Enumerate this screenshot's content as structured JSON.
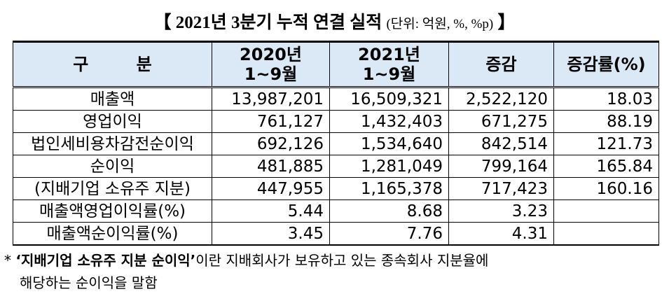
{
  "header": {
    "title": "【 2021년 3분기 누적 연결 실적",
    "unit": "(단위: 억원, %, %p)",
    "close": "】"
  },
  "table": {
    "columns": [
      [
        "구 분"
      ],
      [
        "2020년",
        "1~9월"
      ],
      [
        "2021년",
        "1~9월"
      ],
      [
        "증감"
      ],
      [
        "증감률(%)"
      ]
    ],
    "rows": [
      [
        "매출액",
        "13,987,201",
        "16,509,321",
        "2,522,120",
        "18.03"
      ],
      [
        "영업이익",
        "761,127",
        "1,432,403",
        "671,275",
        "88.19"
      ],
      [
        "법인세비용차감전순이익",
        "692,126",
        "1,534,640",
        "842,514",
        "121.73"
      ],
      [
        "순이익",
        "481,885",
        "1,281,049",
        "799,164",
        "165.84"
      ],
      [
        "(지배기업 소유주 지분)",
        "447,955",
        "1,165,378",
        "717,423",
        "160.16"
      ],
      [
        "매출액영업이익률(%)",
        "5.44",
        "8.68",
        "3.23"
      ],
      [
        "매출액순이익률(%)",
        "3.45",
        "7.76",
        "4.31"
      ]
    ]
  },
  "footnote": {
    "mark": "* ",
    "term": "‘지배기업 소유주 지분 순이익’",
    "line1": "이란 지배회사가 보유하고 있는 종속회사 지분율에",
    "line2": "해당하는 순이익을 말함"
  }
}
